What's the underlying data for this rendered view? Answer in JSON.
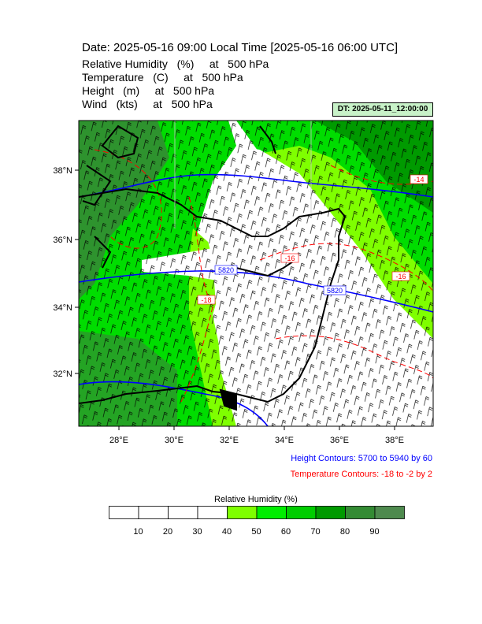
{
  "header": {
    "title": "Date: 2025-05-16  09:00 Local Time [2025-05-16  06:00 UTC]",
    "variables": [
      "Relative Humidity   (%)     at   500 hPa",
      "Temperature   (C)     at   500 hPa",
      "Height   (m)     at   500 hPa",
      "Wind   (kts)     at   500 hPa"
    ],
    "dt_badge": "DT: 2025-05-11_12:00:00"
  },
  "map": {
    "lon_labels": [
      "28°E",
      "30°E",
      "32°E",
      "34°E",
      "36°E",
      "38°E"
    ],
    "lat_labels": [
      "38°N",
      "36°N",
      "34°N",
      "32°N"
    ],
    "height_contour_labels": [
      "5820",
      "5820"
    ],
    "temp_contour_labels": [
      "-14",
      "-16",
      "-16",
      "-18"
    ],
    "colors": {
      "height_contour": "#0000ff",
      "temperature_contour": "#ff0000",
      "coastline": "#000000",
      "wind_barb": "#000000"
    }
  },
  "legend": {
    "height_contours": "Height Contours: 5700 to 5940 by 60",
    "temperature_contours": "Temperature Contours: -18 to -2 by 2",
    "colorbar_title": "Relative Humidity  (%)",
    "colorbar_ticks": [
      "10",
      "20",
      "30",
      "40",
      "50",
      "60",
      "70",
      "80",
      "90"
    ],
    "colorbar_colors": [
      "#ffffff",
      "#ffffff",
      "#ffffff",
      "#ffffff",
      "#7fff00",
      "#00ee00",
      "#00cd00",
      "#009a00",
      "#338b33",
      "#4e8a4e"
    ]
  }
}
